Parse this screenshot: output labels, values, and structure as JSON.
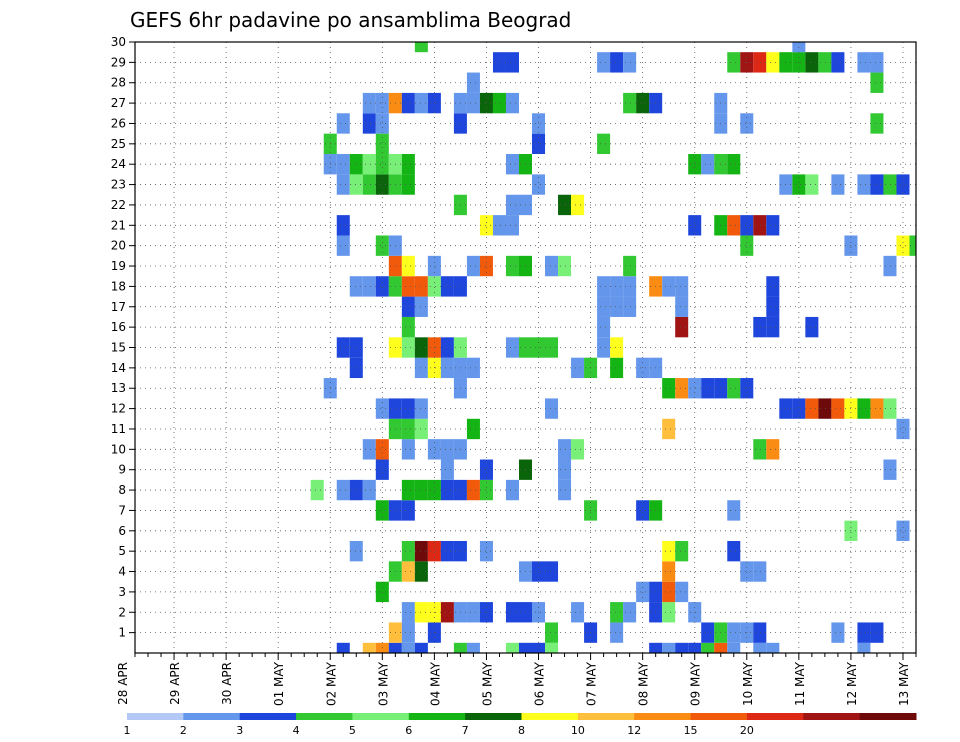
{
  "chart_data": {
    "type": "heatmap",
    "title": "GEFS 6hr padavine po ansamblima Beograd",
    "xlabel": "",
    "ylabel": "",
    "x_tick_labels": [
      "28 APR",
      "29 APR",
      "30 APR",
      "01 MAY",
      "02 MAY",
      "03 MAY",
      "04 MAY",
      "05 MAY",
      "06 MAY",
      "07 MAY",
      "08 MAY",
      "09 MAY",
      "10 MAY",
      "11 MAY",
      "12 MAY",
      "13 MAY"
    ],
    "x_unit": "6-hour step",
    "xlim": [
      0,
      60
    ],
    "y_tick_labels": [
      "1",
      "2",
      "3",
      "4",
      "5",
      "6",
      "7",
      "8",
      "9",
      "10",
      "11",
      "12",
      "13",
      "14",
      "15",
      "16",
      "17",
      "18",
      "19",
      "20",
      "21",
      "22",
      "23",
      "24",
      "25",
      "26",
      "27",
      "28",
      "29",
      "30"
    ],
    "ylim": [
      0,
      30
    ],
    "grid": true,
    "legend_placement": "bottom",
    "levels": [
      "1",
      "2",
      "3",
      "4",
      "5",
      "6",
      "7",
      "8",
      "10",
      "12",
      "15",
      "20"
    ],
    "colors": [
      "#b4c8f5",
      "#6496eb",
      "#1e46dc",
      "#32c832",
      "#78f078",
      "#14b414",
      "#0a640a",
      "#ffff1e",
      "#ffbe3c",
      "#fa8c14",
      "#f05a0a",
      "#dc2814",
      "#a01414",
      "#6e0a0a"
    ],
    "cells": [
      [
        16,
        0,
        2
      ],
      [
        18,
        0,
        8
      ],
      [
        19,
        0,
        9
      ],
      [
        20,
        0,
        2
      ],
      [
        21,
        0,
        1
      ],
      [
        22,
        0,
        2
      ],
      [
        25,
        0,
        3
      ],
      [
        26,
        0,
        1
      ],
      [
        29,
        0,
        4
      ],
      [
        30,
        0,
        2
      ],
      [
        31,
        0,
        2
      ],
      [
        32,
        0,
        4
      ],
      [
        40,
        0,
        2
      ],
      [
        41,
        0,
        1
      ],
      [
        42,
        0,
        2
      ],
      [
        43,
        0,
        2
      ],
      [
        44,
        0,
        3
      ],
      [
        45,
        0,
        10
      ],
      [
        46,
        0,
        1
      ],
      [
        48,
        0,
        1
      ],
      [
        49,
        0,
        1
      ],
      [
        56,
        0,
        1
      ],
      [
        20,
        1,
        8
      ],
      [
        21,
        1,
        1
      ],
      [
        23,
        1,
        2
      ],
      [
        32,
        1,
        3
      ],
      [
        35,
        1,
        2
      ],
      [
        37,
        1,
        1
      ],
      [
        44,
        1,
        2
      ],
      [
        45,
        1,
        3
      ],
      [
        46,
        1,
        1
      ],
      [
        47,
        1,
        1
      ],
      [
        48,
        1,
        2
      ],
      [
        54,
        1,
        1
      ],
      [
        56,
        1,
        2
      ],
      [
        57,
        1,
        2
      ],
      [
        21,
        2,
        1
      ],
      [
        22,
        2,
        7
      ],
      [
        23,
        2,
        7
      ],
      [
        24,
        2,
        12
      ],
      [
        25,
        2,
        1
      ],
      [
        26,
        2,
        1
      ],
      [
        27,
        2,
        2
      ],
      [
        29,
        2,
        2
      ],
      [
        30,
        2,
        2
      ],
      [
        31,
        2,
        1
      ],
      [
        34,
        2,
        1
      ],
      [
        37,
        2,
        3
      ],
      [
        38,
        2,
        1
      ],
      [
        40,
        2,
        2
      ],
      [
        41,
        2,
        4
      ],
      [
        43,
        2,
        1
      ],
      [
        19,
        3,
        5
      ],
      [
        39,
        3,
        1
      ],
      [
        40,
        3,
        2
      ],
      [
        41,
        3,
        10
      ],
      [
        42,
        3,
        1
      ],
      [
        20,
        4,
        3
      ],
      [
        21,
        4,
        8
      ],
      [
        22,
        4,
        6
      ],
      [
        30,
        4,
        1
      ],
      [
        31,
        4,
        2
      ],
      [
        32,
        4,
        2
      ],
      [
        41,
        4,
        9
      ],
      [
        47,
        4,
        1
      ],
      [
        48,
        4,
        1
      ],
      [
        17,
        5,
        1
      ],
      [
        21,
        5,
        3
      ],
      [
        22,
        5,
        13
      ],
      [
        23,
        5,
        11
      ],
      [
        24,
        5,
        2
      ],
      [
        25,
        5,
        2
      ],
      [
        27,
        5,
        1
      ],
      [
        41,
        5,
        7
      ],
      [
        42,
        5,
        3
      ],
      [
        46,
        5,
        2
      ],
      [
        55,
        6,
        4
      ],
      [
        59,
        6,
        1
      ],
      [
        19,
        7,
        5
      ],
      [
        20,
        7,
        2
      ],
      [
        21,
        7,
        2
      ],
      [
        35,
        7,
        3
      ],
      [
        39,
        7,
        2
      ],
      [
        40,
        7,
        5
      ],
      [
        46,
        7,
        1
      ],
      [
        14,
        8,
        4
      ],
      [
        16,
        8,
        1
      ],
      [
        17,
        8,
        2
      ],
      [
        18,
        8,
        1
      ],
      [
        21,
        8,
        5
      ],
      [
        22,
        8,
        5
      ],
      [
        23,
        8,
        5
      ],
      [
        24,
        8,
        2
      ],
      [
        25,
        8,
        2
      ],
      [
        26,
        8,
        10
      ],
      [
        27,
        8,
        3
      ],
      [
        29,
        8,
        1
      ],
      [
        33,
        8,
        1
      ],
      [
        19,
        9,
        2
      ],
      [
        24,
        9,
        1
      ],
      [
        27,
        9,
        2
      ],
      [
        30,
        9,
        6
      ],
      [
        33,
        9,
        1
      ],
      [
        58,
        9,
        1
      ],
      [
        18,
        10,
        1
      ],
      [
        19,
        10,
        10
      ],
      [
        21,
        10,
        1
      ],
      [
        23,
        10,
        1
      ],
      [
        24,
        10,
        1
      ],
      [
        25,
        10,
        1
      ],
      [
        33,
        10,
        1
      ],
      [
        34,
        10,
        4
      ],
      [
        48,
        10,
        3
      ],
      [
        49,
        10,
        9
      ],
      [
        20,
        11,
        3
      ],
      [
        21,
        11,
        3
      ],
      [
        22,
        11,
        4
      ],
      [
        26,
        11,
        5
      ],
      [
        41,
        11,
        8
      ],
      [
        59,
        11,
        1
      ],
      [
        19,
        12,
        1
      ],
      [
        20,
        12,
        2
      ],
      [
        21,
        12,
        2
      ],
      [
        22,
        12,
        1
      ],
      [
        32,
        12,
        1
      ],
      [
        50,
        12,
        2
      ],
      [
        51,
        12,
        2
      ],
      [
        52,
        12,
        10
      ],
      [
        53,
        12,
        13
      ],
      [
        54,
        12,
        10
      ],
      [
        55,
        12,
        7
      ],
      [
        56,
        12,
        5
      ],
      [
        57,
        12,
        9
      ],
      [
        58,
        12,
        4
      ],
      [
        15,
        13,
        1
      ],
      [
        25,
        13,
        1
      ],
      [
        41,
        13,
        5
      ],
      [
        42,
        13,
        9
      ],
      [
        43,
        13,
        1
      ],
      [
        44,
        13,
        2
      ],
      [
        45,
        13,
        2
      ],
      [
        46,
        13,
        3
      ],
      [
        47,
        13,
        2
      ],
      [
        17,
        14,
        2
      ],
      [
        22,
        14,
        1
      ],
      [
        23,
        14,
        7
      ],
      [
        24,
        14,
        1
      ],
      [
        25,
        14,
        1
      ],
      [
        26,
        14,
        1
      ],
      [
        34,
        14,
        1
      ],
      [
        35,
        14,
        3
      ],
      [
        37,
        14,
        5
      ],
      [
        39,
        14,
        1
      ],
      [
        40,
        14,
        1
      ],
      [
        16,
        15,
        2
      ],
      [
        17,
        15,
        2
      ],
      [
        20,
        15,
        7
      ],
      [
        21,
        15,
        4
      ],
      [
        22,
        15,
        6
      ],
      [
        23,
        15,
        10
      ],
      [
        24,
        15,
        2
      ],
      [
        25,
        15,
        4
      ],
      [
        29,
        15,
        1
      ],
      [
        30,
        15,
        3
      ],
      [
        31,
        15,
        3
      ],
      [
        32,
        15,
        3
      ],
      [
        36,
        15,
        1
      ],
      [
        37,
        15,
        7
      ],
      [
        21,
        16,
        3
      ],
      [
        36,
        16,
        1
      ],
      [
        42,
        16,
        12
      ],
      [
        48,
        16,
        2
      ],
      [
        49,
        16,
        2
      ],
      [
        52,
        16,
        2
      ],
      [
        21,
        17,
        2
      ],
      [
        22,
        17,
        1
      ],
      [
        36,
        17,
        1
      ],
      [
        37,
        17,
        1
      ],
      [
        38,
        17,
        1
      ],
      [
        42,
        17,
        1
      ],
      [
        49,
        17,
        2
      ],
      [
        17,
        18,
        1
      ],
      [
        18,
        18,
        1
      ],
      [
        19,
        18,
        2
      ],
      [
        20,
        18,
        3
      ],
      [
        21,
        18,
        10
      ],
      [
        22,
        18,
        10
      ],
      [
        23,
        18,
        4
      ],
      [
        24,
        18,
        2
      ],
      [
        25,
        18,
        2
      ],
      [
        36,
        18,
        1
      ],
      [
        37,
        18,
        1
      ],
      [
        38,
        18,
        1
      ],
      [
        40,
        18,
        9
      ],
      [
        41,
        18,
        1
      ],
      [
        42,
        18,
        1
      ],
      [
        49,
        18,
        2
      ],
      [
        20,
        19,
        10
      ],
      [
        21,
        19,
        7
      ],
      [
        23,
        19,
        1
      ],
      [
        26,
        19,
        1
      ],
      [
        27,
        19,
        10
      ],
      [
        29,
        19,
        3
      ],
      [
        30,
        19,
        5
      ],
      [
        32,
        19,
        1
      ],
      [
        33,
        19,
        4
      ],
      [
        38,
        19,
        3
      ],
      [
        58,
        19,
        1
      ],
      [
        16,
        20,
        1
      ],
      [
        19,
        20,
        3
      ],
      [
        20,
        20,
        1
      ],
      [
        47,
        20,
        3
      ],
      [
        55,
        20,
        1
      ],
      [
        59,
        20,
        7
      ],
      [
        60,
        20,
        3
      ],
      [
        16,
        21,
        2
      ],
      [
        27,
        21,
        7
      ],
      [
        28,
        21,
        1
      ],
      [
        29,
        21,
        1
      ],
      [
        43,
        21,
        2
      ],
      [
        45,
        21,
        5
      ],
      [
        46,
        21,
        10
      ],
      [
        47,
        21,
        2
      ],
      [
        48,
        21,
        12
      ],
      [
        49,
        21,
        2
      ],
      [
        25,
        22,
        3
      ],
      [
        29,
        22,
        1
      ],
      [
        30,
        22,
        1
      ],
      [
        33,
        22,
        6
      ],
      [
        34,
        22,
        7
      ],
      [
        16,
        23,
        1
      ],
      [
        17,
        23,
        4
      ],
      [
        18,
        23,
        3
      ],
      [
        19,
        23,
        6
      ],
      [
        20,
        23,
        3
      ],
      [
        21,
        23,
        5
      ],
      [
        31,
        23,
        1
      ],
      [
        50,
        23,
        1
      ],
      [
        51,
        23,
        5
      ],
      [
        52,
        23,
        4
      ],
      [
        54,
        23,
        1
      ],
      [
        56,
        23,
        1
      ],
      [
        57,
        23,
        2
      ],
      [
        58,
        23,
        3
      ],
      [
        59,
        23,
        2
      ],
      [
        15,
        24,
        1
      ],
      [
        16,
        24,
        1
      ],
      [
        17,
        24,
        5
      ],
      [
        18,
        24,
        4
      ],
      [
        19,
        24,
        3
      ],
      [
        20,
        24,
        4
      ],
      [
        21,
        24,
        5
      ],
      [
        29,
        24,
        1
      ],
      [
        30,
        24,
        5
      ],
      [
        43,
        24,
        5
      ],
      [
        44,
        24,
        1
      ],
      [
        45,
        24,
        3
      ],
      [
        46,
        24,
        5
      ],
      [
        15,
        25,
        3
      ],
      [
        19,
        25,
        3
      ],
      [
        31,
        25,
        2
      ],
      [
        36,
        25,
        3
      ],
      [
        16,
        26,
        1
      ],
      [
        18,
        26,
        2
      ],
      [
        19,
        26,
        1
      ],
      [
        25,
        26,
        2
      ],
      [
        31,
        26,
        1
      ],
      [
        45,
        26,
        1
      ],
      [
        47,
        26,
        1
      ],
      [
        57,
        26,
        3
      ],
      [
        18,
        27,
        1
      ],
      [
        19,
        27,
        1
      ],
      [
        20,
        27,
        9
      ],
      [
        21,
        27,
        2
      ],
      [
        22,
        27,
        1
      ],
      [
        23,
        27,
        2
      ],
      [
        25,
        27,
        1
      ],
      [
        26,
        27,
        1
      ],
      [
        27,
        27,
        6
      ],
      [
        28,
        27,
        5
      ],
      [
        29,
        27,
        1
      ],
      [
        38,
        27,
        3
      ],
      [
        39,
        27,
        6
      ],
      [
        40,
        27,
        2
      ],
      [
        45,
        27,
        1
      ],
      [
        26,
        28,
        1
      ],
      [
        57,
        28,
        3
      ],
      [
        28,
        29,
        2
      ],
      [
        29,
        29,
        2
      ],
      [
        36,
        29,
        1
      ],
      [
        37,
        29,
        2
      ],
      [
        38,
        29,
        1
      ],
      [
        46,
        29,
        3
      ],
      [
        47,
        29,
        12
      ],
      [
        48,
        29,
        11
      ],
      [
        49,
        29,
        7
      ],
      [
        50,
        29,
        5
      ],
      [
        51,
        29,
        5
      ],
      [
        52,
        29,
        6
      ],
      [
        53,
        29,
        3
      ],
      [
        54,
        29,
        2
      ],
      [
        56,
        29,
        1
      ],
      [
        57,
        29,
        1
      ],
      [
        22,
        30,
        3
      ],
      [
        51,
        30,
        1
      ]
    ]
  }
}
